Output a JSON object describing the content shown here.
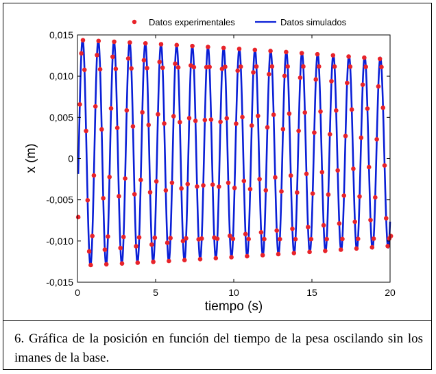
{
  "caption": "6. Gráfica de la posición en función del tiempo de la pesa oscilando sin los imanes de la base.",
  "chart_data": {
    "type": "line",
    "xlabel": "tiempo (s)",
    "ylabel": "x (m)",
    "xlim": [
      0,
      20
    ],
    "ylim": [
      -0.015,
      0.015
    ],
    "x_ticks": [
      "0",
      "5",
      "10",
      "15",
      "20"
    ],
    "y_ticks": [
      "-0,015",
      "-0,010",
      "-0,005",
      "0",
      "0,005",
      "0,010",
      "0,015"
    ],
    "legend_position": "top",
    "grid": false,
    "series": [
      {
        "name": "Datos experimentales",
        "style": "markers",
        "color": "#e8232a",
        "model": {
          "offset": 0.0007,
          "amplitude_start": 0.0138,
          "amplitude_end": 0.0115,
          "frequency_hz": 0.9975,
          "phase_rad": -0.5,
          "x_start": 0.05,
          "x_end": 20.0,
          "sample_rate_hz": 10,
          "first_value": -0.0071,
          "last_value": -0.0094
        }
      },
      {
        "name": "Datos simulados",
        "style": "line",
        "color": "#0a1fd6",
        "model": {
          "offset": 0.0007,
          "amplitude_start": 0.0138,
          "amplitude_end": 0.0115,
          "frequency_hz": 0.9975,
          "phase_rad": -0.5,
          "x_start": 0.05,
          "x_end": 20.0
        }
      }
    ]
  }
}
